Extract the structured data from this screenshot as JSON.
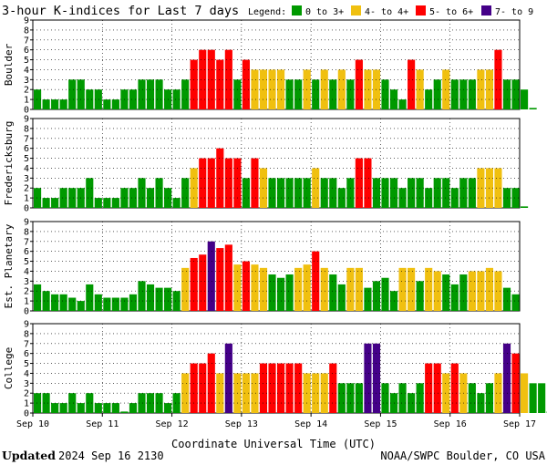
{
  "header": {
    "title": "3-hour K-indices for Last 7 days",
    "legend_label": "Legend:",
    "legend": [
      {
        "label": "0 to 3+",
        "color": "#009900"
      },
      {
        "label": "4- to 4+",
        "color": "#f0c010"
      },
      {
        "label": "5- to 6+",
        "color": "#ff0000"
      },
      {
        "label": "7- to 9",
        "color": "#440088"
      }
    ]
  },
  "footer": {
    "updated_label": "Updated",
    "updated_value": "2024 Sep 16 2130",
    "credit": "NOAA/SWPC Boulder, CO USA"
  },
  "chart_data": {
    "type": "bar",
    "title": "3-hour K-indices for Last 7 days",
    "xlabel": "Coordinate Universal Time (UTC)",
    "ylim": [
      0,
      9
    ],
    "yticks": [
      0,
      1,
      2,
      3,
      4,
      5,
      6,
      7,
      8,
      9
    ],
    "grid": true,
    "intervals_per_day": 8,
    "day_labels": [
      "Sep 10",
      "Sep 11",
      "Sep 12",
      "Sep 13",
      "Sep 14",
      "Sep 15",
      "Sep 16",
      "Sep 17"
    ],
    "color_classes": [
      {
        "range": "0 to 3+",
        "min": 0,
        "max": 3.99,
        "color": "#009900"
      },
      {
        "range": "4- to 4+",
        "min": 4,
        "max": 4.99,
        "color": "#f0c010"
      },
      {
        "range": "5- to 6+",
        "min": 5,
        "max": 6.99,
        "color": "#ff0000"
      },
      {
        "range": "7- to 9",
        "min": 7,
        "max": 9,
        "color": "#440088"
      }
    ],
    "series": [
      {
        "name": "Boulder",
        "values": [
          2,
          1,
          1,
          1,
          3,
          3,
          2,
          2,
          1,
          1,
          2,
          2,
          3,
          3,
          3,
          2,
          2,
          3,
          5,
          6,
          6,
          5,
          6,
          3,
          5,
          4,
          4,
          4,
          4,
          3,
          3,
          4,
          3,
          4,
          3,
          4,
          3,
          5,
          4,
          4,
          3,
          2,
          1,
          5,
          4,
          2,
          3,
          4,
          3,
          3,
          3,
          4,
          4,
          6,
          3,
          3,
          2,
          0
        ]
      },
      {
        "name": "Fredericksburg",
        "values": [
          2,
          1,
          1,
          2,
          2,
          2,
          3,
          1,
          1,
          1,
          2,
          2,
          3,
          2,
          3,
          2,
          1,
          3,
          4,
          5,
          5,
          6,
          5,
          5,
          3,
          5,
          4,
          3,
          3,
          3,
          3,
          3,
          4,
          3,
          3,
          2,
          3,
          5,
          5,
          3,
          3,
          3,
          2,
          3,
          3,
          2,
          3,
          3,
          2,
          3,
          3,
          4,
          4,
          4,
          2,
          2,
          0
        ]
      },
      {
        "name": "Est. Planetary",
        "values": [
          2.67,
          2,
          1.67,
          1.67,
          1.33,
          1,
          2.67,
          1.67,
          1.33,
          1.33,
          1.33,
          1.67,
          3,
          2.67,
          2.33,
          2.33,
          2,
          4.33,
          5.33,
          5.67,
          7,
          6.33,
          6.67,
          4.67,
          5,
          4.67,
          4.33,
          3.67,
          3.33,
          3.67,
          4.33,
          4.67,
          6,
          4.33,
          3.67,
          2.67,
          4.33,
          4.33,
          2.33,
          3,
          3.33,
          2,
          4.33,
          4.33,
          3,
          4.33,
          4,
          3.67,
          2.67,
          3.67,
          4,
          4,
          4.33,
          4,
          2.33,
          1.67
        ]
      },
      {
        "name": "College",
        "values": [
          2,
          2,
          1,
          1,
          2,
          1,
          2,
          1,
          1,
          1,
          0,
          1,
          2,
          2,
          2,
          1,
          2,
          4,
          5,
          5,
          6,
          4,
          7,
          4,
          4,
          4,
          5,
          5,
          5,
          5,
          5,
          4,
          4,
          4,
          5,
          3,
          3,
          3,
          7,
          7,
          3,
          2,
          3,
          2,
          3,
          5,
          5,
          4,
          5,
          4,
          3,
          2,
          3,
          4,
          7,
          6,
          4,
          3,
          3,
          0
        ]
      }
    ]
  }
}
